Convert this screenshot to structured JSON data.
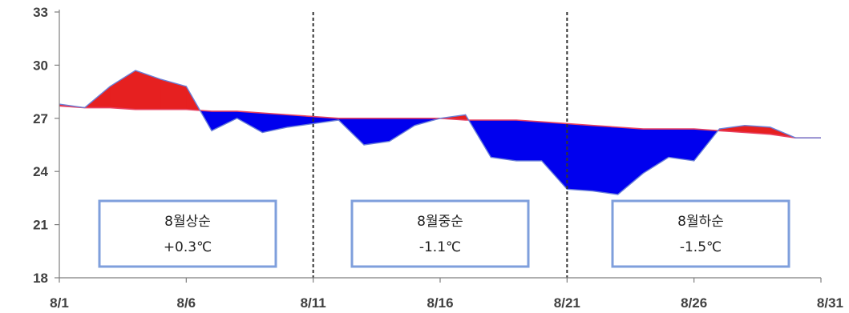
{
  "chart_data": {
    "type": "area",
    "x": [
      "8/1",
      "8/2",
      "8/3",
      "8/4",
      "8/5",
      "8/6",
      "8/7",
      "8/8",
      "8/9",
      "8/10",
      "8/11",
      "8/12",
      "8/13",
      "8/14",
      "8/15",
      "8/16",
      "8/17",
      "8/18",
      "8/19",
      "8/20",
      "8/21",
      "8/22",
      "8/23",
      "8/24",
      "8/25",
      "8/26",
      "8/27",
      "8/28",
      "8/29",
      "8/30",
      "8/31"
    ],
    "x_tick_labels": [
      "8/1",
      "8/6",
      "8/11",
      "8/16",
      "8/21",
      "8/26",
      "8/31"
    ],
    "y_tick_labels": [
      "18",
      "21",
      "24",
      "27",
      "30",
      "33"
    ],
    "ylim": [
      18,
      33
    ],
    "series": [
      {
        "values": [
          27.8,
          27.6,
          28.8,
          29.7,
          29.2,
          28.8,
          26.3,
          27.0,
          26.2,
          26.5,
          26.7,
          26.9,
          25.5,
          25.7,
          26.6,
          27.0,
          27.2,
          24.8,
          24.6,
          24.6,
          23.0,
          22.9,
          22.7,
          23.9,
          24.8,
          24.6,
          26.4,
          26.6,
          26.5,
          25.9,
          25.9
        ]
      },
      {
        "values": [
          27.7,
          27.6,
          27.6,
          27.5,
          27.5,
          27.5,
          27.4,
          27.4,
          27.3,
          27.2,
          27.1,
          27.0,
          27.0,
          27.0,
          27.0,
          27.0,
          26.9,
          26.9,
          26.9,
          26.8,
          26.7,
          26.6,
          26.5,
          26.4,
          26.4,
          26.4,
          26.3,
          26.2,
          26.1,
          25.9,
          25.9
        ]
      }
    ],
    "above_color": "#e62020",
    "below_color": "#0000ee",
    "grid": false,
    "vertical_markers": [
      "8/11",
      "8/21"
    ],
    "annotations": [
      {
        "title": "8월상순",
        "value": "+0.3℃"
      },
      {
        "title": "8월중순",
        "value": "-1.1℃"
      },
      {
        "title": "8월하순",
        "value": "-1.5℃"
      }
    ],
    "annotation_border_color": "#7f9fdc"
  }
}
